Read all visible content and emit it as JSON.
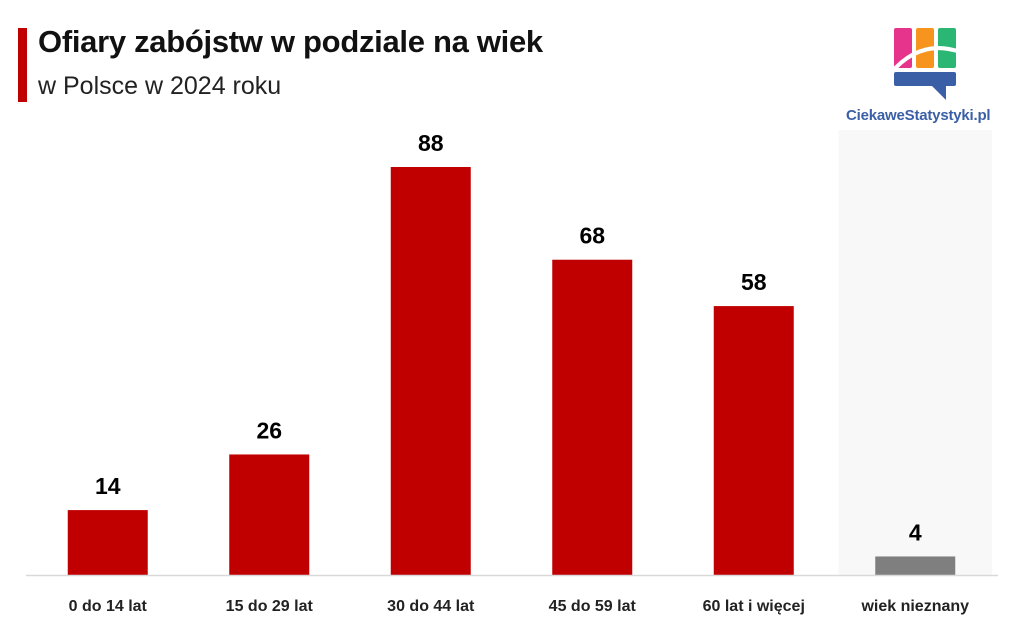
{
  "header": {
    "title": "Ofiary zabójstw w podziale na wiek",
    "subtitle": "w Polsce w 2024 roku"
  },
  "brand": {
    "name": "CiekaweStatystyki.pl"
  },
  "colors": {
    "accent": "#c00000",
    "unknown_bar": "#7f7f7f",
    "baseline": "#d9d9d9"
  },
  "chart_data": {
    "type": "bar",
    "title": "Ofiary zabójstw w podziale na wiek",
    "subtitle": "w Polsce w 2024 roku",
    "categories": [
      "0 do 14 lat",
      "15 do 29 lat",
      "30 do 44 lat",
      "45 do 59 lat",
      "60 lat i więcej",
      "wiek nieznany"
    ],
    "values": [
      14,
      26,
      88,
      68,
      58,
      4
    ],
    "bar_colors": [
      "#c00000",
      "#c00000",
      "#c00000",
      "#c00000",
      "#c00000",
      "#7f7f7f"
    ],
    "data_labels": [
      "14",
      "26",
      "88",
      "68",
      "58",
      "4"
    ],
    "xlabel": "",
    "ylabel": "",
    "ylim": [
      0,
      88
    ],
    "grid": false,
    "legend": "none"
  }
}
